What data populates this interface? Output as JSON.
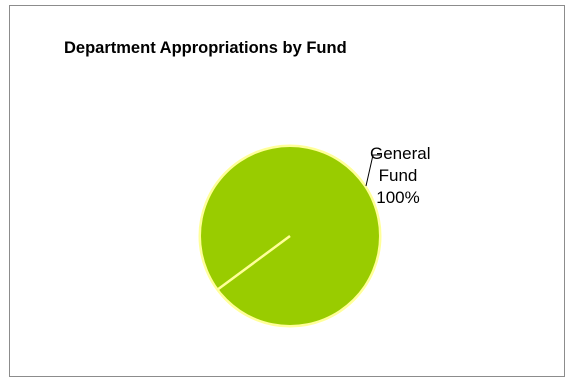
{
  "chart_data": {
    "type": "pie",
    "title": "Department Appropriations by Fund",
    "slices": [
      {
        "label_lines": [
          "General",
          "Fund",
          "100%"
        ],
        "name": "General Fund",
        "value": 100,
        "percent": "100%",
        "color": "#99cc00"
      }
    ],
    "legend": "none"
  }
}
